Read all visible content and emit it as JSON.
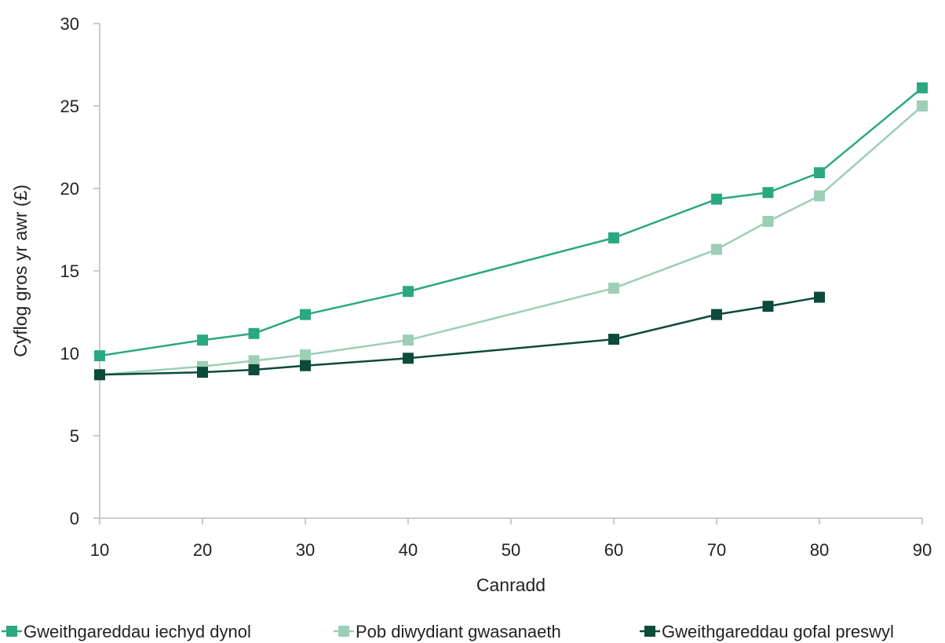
{
  "chart_data": {
    "type": "line",
    "title": "",
    "xlabel": "Canradd",
    "ylabel": "Cyflog gros yr awr (£)",
    "xlim": [
      10,
      90
    ],
    "ylim": [
      0,
      30
    ],
    "x_ticks": [
      10,
      20,
      30,
      40,
      50,
      60,
      70,
      80,
      90
    ],
    "y_ticks": [
      0,
      5,
      10,
      15,
      20,
      25,
      30
    ],
    "grid": false,
    "legend_position": "bottom",
    "series": [
      {
        "name": "Gweithgareddau iechyd dynol",
        "color": "#2aa882",
        "x": [
          10,
          20,
          25,
          30,
          40,
          60,
          70,
          75,
          80,
          90
        ],
        "y": [
          9.85,
          10.8,
          11.2,
          12.35,
          13.75,
          17.0,
          19.35,
          19.75,
          20.95,
          26.1
        ]
      },
      {
        "name": "Pob diwydiant gwasanaeth",
        "color": "#9ccfb5",
        "x": [
          10,
          20,
          25,
          30,
          40,
          60,
          70,
          75,
          80,
          90
        ],
        "y": [
          8.7,
          9.2,
          9.55,
          9.9,
          10.8,
          13.95,
          16.3,
          18.0,
          19.55,
          25.0
        ]
      },
      {
        "name": "Gweithgareddau gofal preswyl",
        "color": "#0c4a3c",
        "x": [
          10,
          20,
          25,
          30,
          40,
          60,
          70,
          75,
          80
        ],
        "y": [
          8.7,
          8.85,
          9.0,
          9.25,
          9.7,
          10.85,
          12.35,
          12.85,
          13.4
        ]
      }
    ]
  }
}
